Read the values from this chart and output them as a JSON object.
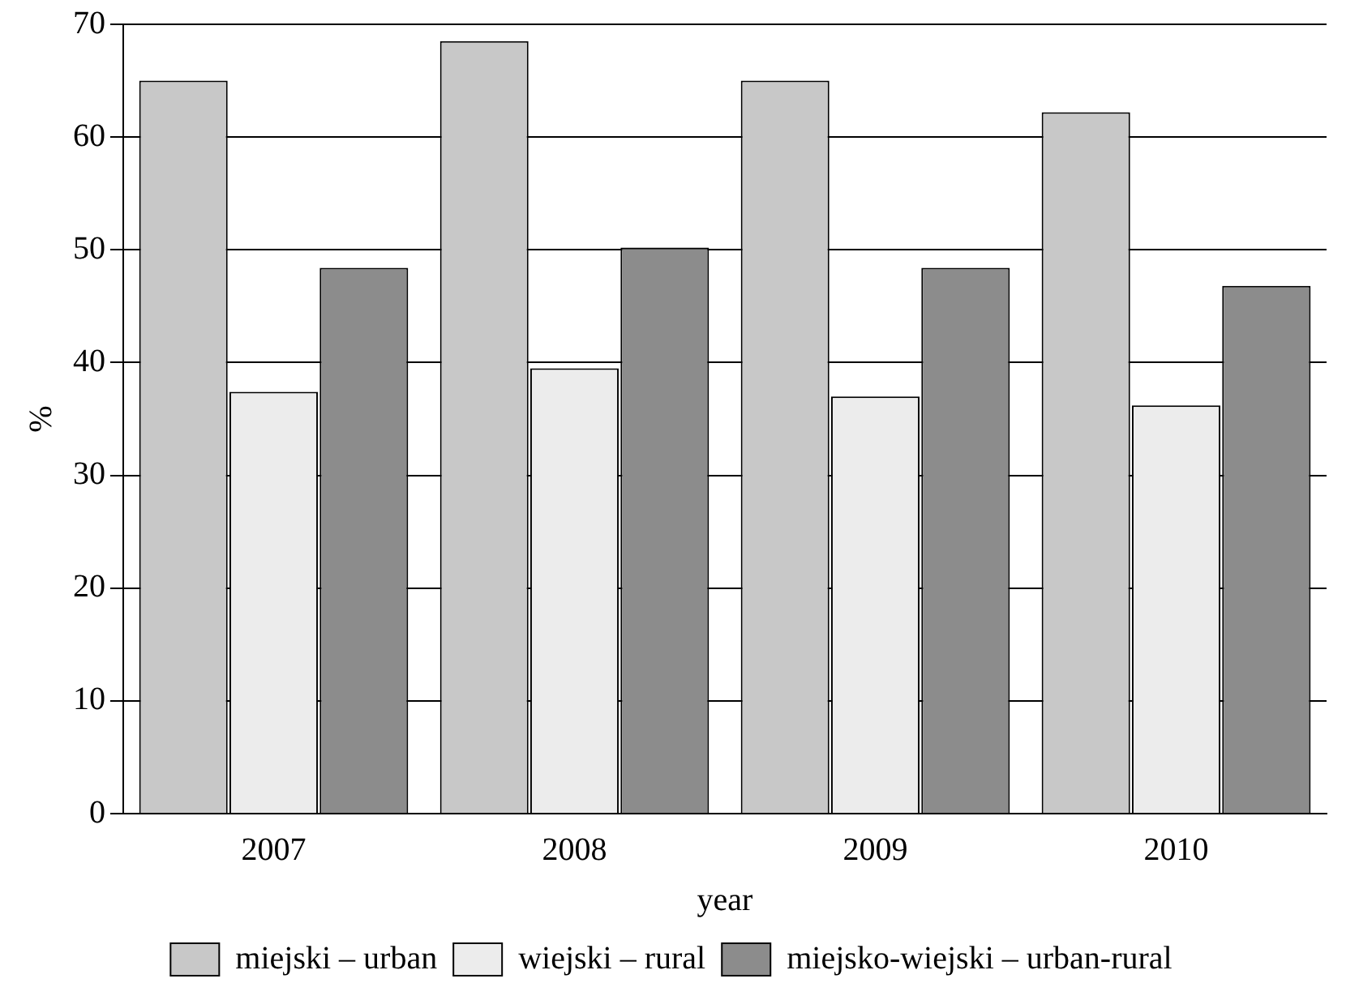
{
  "chart_data": {
    "type": "bar",
    "xlabel": "year",
    "ylabel": "%",
    "categories": [
      "2007",
      "2008",
      "2009",
      "2010"
    ],
    "series": [
      {
        "name": "miejski – urban",
        "color": "#c8c8c8",
        "values": [
          65,
          68.5,
          65,
          62.2
        ]
      },
      {
        "name": "wiejski – rural",
        "color": "#ececec",
        "values": [
          37.4,
          39.5,
          37,
          36.2
        ]
      },
      {
        "name": "miejsko-wiejski – urban-rural",
        "color": "#8c8c8c",
        "values": [
          48.4,
          50.2,
          48.4,
          46.8
        ]
      }
    ],
    "ylim": [
      0,
      70
    ],
    "yticks": [
      0,
      10,
      20,
      30,
      40,
      50,
      60,
      70
    ],
    "grid": "y",
    "legend": "bottom"
  }
}
